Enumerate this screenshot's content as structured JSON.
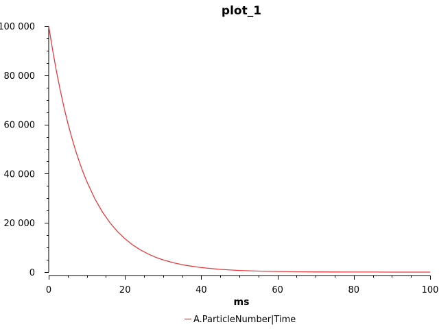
{
  "chart_data": {
    "type": "line",
    "title": "plot_1",
    "xlabel": "ms",
    "ylabel": "",
    "xlim": [
      0,
      100
    ],
    "ylim": [
      0,
      100000
    ],
    "x_ticks": [
      0,
      20,
      40,
      60,
      80,
      100
    ],
    "x_tick_labels": [
      "0",
      "20",
      "40",
      "60",
      "80",
      "100"
    ],
    "y_ticks": [
      0,
      20000,
      40000,
      60000,
      80000,
      100000
    ],
    "y_tick_labels": [
      "0",
      "20 000",
      "40 000",
      "60 000",
      "80 000",
      "100 000"
    ],
    "grid": false,
    "legend_position": "bottom",
    "series": [
      {
        "name": "A.ParticleNumber|Time",
        "color": "#e8393d",
        "x": [
          0,
          1,
          2,
          3,
          4,
          5,
          6,
          7,
          8,
          9,
          10,
          12,
          14,
          16,
          18,
          20,
          22,
          24,
          26,
          28,
          30,
          33,
          36,
          40,
          45,
          50,
          55,
          60,
          65,
          70,
          75,
          80,
          85,
          90,
          95,
          100
        ],
        "y": [
          100000,
          90484,
          81873,
          74082,
          67032,
          60653,
          54881,
          49659,
          44933,
          40657,
          36788,
          30119,
          24660,
          20190,
          16530,
          13534,
          11080,
          9072,
          7427,
          6081,
          4979,
          3688,
          2732,
          1832,
          1111,
          674,
          409,
          248,
          150,
          91,
          55,
          34,
          20,
          12,
          7,
          5
        ]
      }
    ]
  }
}
